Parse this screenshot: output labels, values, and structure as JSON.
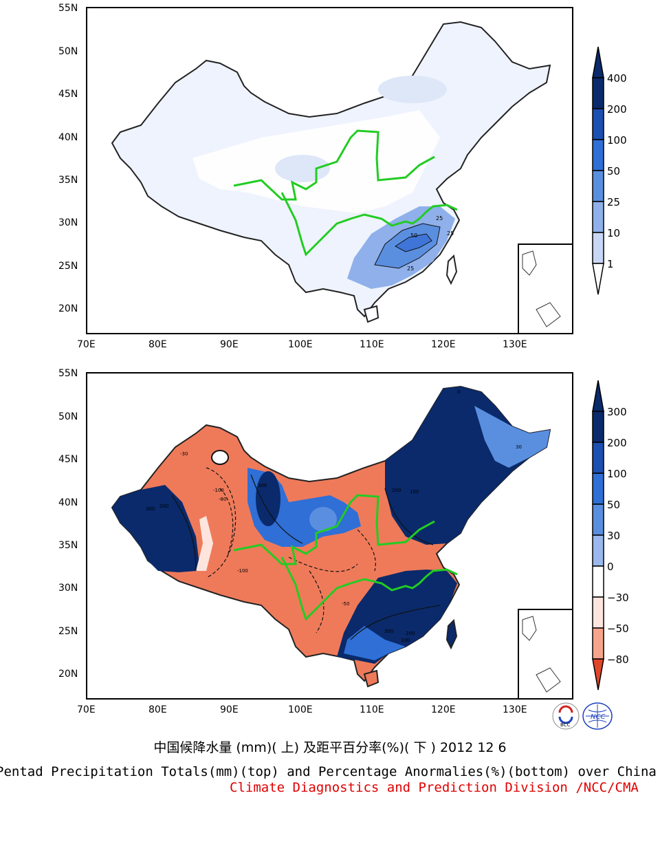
{
  "maps": [
    {
      "id": "top",
      "lat_labels": [
        "55N",
        "50N",
        "45N",
        "40N",
        "35N",
        "30N",
        "25N",
        "20N"
      ],
      "lon_labels": [
        "70E",
        "80E",
        "90E",
        "100E",
        "110E",
        "120E",
        "130E"
      ],
      "colorbar": {
        "labels": [
          "400",
          "200",
          "100",
          "50",
          "25",
          "10",
          "1"
        ],
        "colors": [
          "#0a2a6b",
          "#1b4fb0",
          "#2f6fd6",
          "#5a8fe0",
          "#8fb0ea",
          "#c8d7f5",
          "#ffffff"
        ]
      },
      "contour_labels": [
        "50",
        "25",
        "25",
        "25"
      ]
    },
    {
      "id": "bottom",
      "lat_labels": [
        "55N",
        "50N",
        "45N",
        "40N",
        "35N",
        "30N",
        "25N",
        "20N"
      ],
      "lon_labels": [
        "70E",
        "80E",
        "90E",
        "100E",
        "110E",
        "120E",
        "130E"
      ],
      "colorbar": {
        "labels": [
          "300",
          "200",
          "100",
          "50",
          "30",
          "0",
          "−30",
          "−50",
          "−80"
        ],
        "colors": [
          "#0a2a6b",
          "#1b4fb0",
          "#2f6fd6",
          "#5a8fe0",
          "#9ab8ee",
          "#ffffff",
          "#fde5de",
          "#f7a48d",
          "#ef6a47",
          "#e0462a"
        ]
      },
      "contour_labels": [
        "300",
        "200",
        "-100",
        "-80",
        "-30",
        "300",
        "100",
        "200",
        "30",
        "-100",
        "-50",
        "300",
        "200",
        "100",
        "0"
      ]
    }
  ],
  "caption_cn": "中国候降水量 (mm)( 上) 及距平百分率(%)( 下 ) 2012 12 6",
  "caption_en": "Pentad Precipitation Totals(mm)(top) and Percentage Anormalies(%)(bottom) over China",
  "caption_credit": "Climate Diagnostics and Prediction Division /NCC/CMA",
  "logos": [
    "BCC",
    "NCC"
  ]
}
